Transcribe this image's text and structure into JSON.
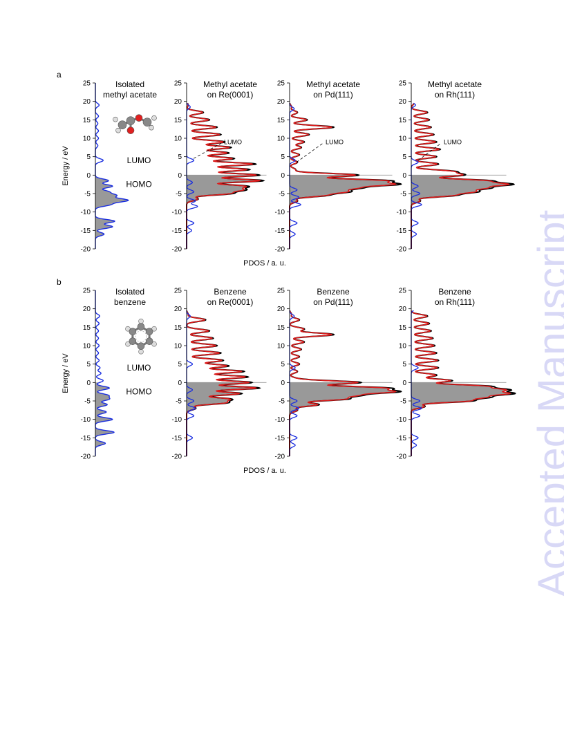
{
  "watermark": "Accepted Manuscript",
  "colors": {
    "isolated": "#1a2ee0",
    "adsorbed_black": "#000000",
    "adsorbed_red": "#dd1a1a",
    "occupied_fill": "#999999",
    "watermark": "#d8d8f6"
  },
  "chart_data": [
    {
      "panel": "a",
      "type": "area",
      "x_axis_label": "PDOS / a. u.",
      "y_axis_label": "Energy / eV",
      "ylim": [
        -20,
        25
      ],
      "yticks": [
        25,
        20,
        15,
        10,
        5,
        0,
        -5,
        -10,
        -15,
        -20
      ],
      "occupied_region": "energy below 0 eV shaded grey",
      "subplots": [
        {
          "title": [
            "Isolated",
            "methyl acetate"
          ],
          "kind": "isolated",
          "annotations": [
            "LUMO",
            "HOMO"
          ],
          "lumo_ev": 4,
          "homo_ev": -1,
          "peaks": [
            [
              19,
              0.12
            ],
            [
              16,
              0.1
            ],
            [
              14,
              0.08
            ],
            [
              12,
              0.1
            ],
            [
              10,
              0.1
            ],
            [
              8,
              0.08
            ],
            [
              4,
              0.25
            ],
            [
              -1.5,
              0.42
            ],
            [
              -3,
              0.55
            ],
            [
              -4.5,
              0.4
            ],
            [
              -5.5,
              0.62
            ],
            [
              -6.5,
              0.48
            ],
            [
              -7,
              0.72
            ],
            [
              -8,
              0.45
            ],
            [
              -12.5,
              0.62
            ],
            [
              -14,
              0.55
            ],
            [
              -16,
              0.28
            ]
          ]
        },
        {
          "title": [
            "Methyl acetate",
            "on Re(0001)"
          ],
          "kind": "adsorbed",
          "annotations": [
            "LUMO"
          ],
          "lumo_ev": 4,
          "peaks": [
            [
              19,
              0.02
            ],
            [
              17,
              0.22
            ],
            [
              15,
              0.3
            ],
            [
              13,
              0.4
            ],
            [
              11,
              0.45
            ],
            [
              9,
              0.5
            ],
            [
              7.5,
              0.58
            ],
            [
              6,
              0.55
            ],
            [
              4.5,
              0.62
            ],
            [
              3,
              0.9
            ],
            [
              1.5,
              0.82
            ],
            [
              0,
              0.95
            ],
            [
              -1.5,
              1.0
            ],
            [
              -3,
              0.75
            ],
            [
              -4,
              0.68
            ],
            [
              -5,
              0.55
            ],
            [
              -6.5,
              0.15
            ]
          ],
          "molecule_peaks": [
            [
              18.5,
              0.05
            ],
            [
              4,
              0.1
            ],
            [
              -2,
              0.08
            ],
            [
              -4.5,
              0.1
            ],
            [
              -7,
              0.12
            ],
            [
              -8.5,
              0.15
            ],
            [
              -13,
              0.1
            ],
            [
              -15,
              0.07
            ]
          ]
        },
        {
          "title": [
            "Methyl acetate",
            "on Pd(111)"
          ],
          "kind": "adsorbed",
          "annotations": [
            "LUMO"
          ],
          "lumo_ev": 3,
          "peaks": [
            [
              18.5,
              0.02
            ],
            [
              17,
              0.08
            ],
            [
              15,
              0.18
            ],
            [
              13,
              0.45
            ],
            [
              11,
              0.2
            ],
            [
              9,
              0.15
            ],
            [
              7.5,
              0.12
            ],
            [
              5.5,
              0.1
            ],
            [
              3.5,
              0.08
            ],
            [
              1.5,
              0.06
            ],
            [
              0,
              0.7
            ],
            [
              -1.5,
              0.95
            ],
            [
              -2.5,
              1.0
            ],
            [
              -3.5,
              0.62
            ],
            [
              -4.5,
              0.55
            ],
            [
              -5.5,
              0.35
            ],
            [
              -7,
              0.08
            ]
          ],
          "molecule_peaks": [
            [
              18,
              0.05
            ],
            [
              4,
              0.06
            ],
            [
              -4,
              0.08
            ],
            [
              -6,
              0.1
            ],
            [
              -8,
              0.12
            ],
            [
              -13,
              0.08
            ],
            [
              -16,
              0.06
            ]
          ]
        },
        {
          "title": [
            "Methyl acetate",
            "on Rh(111)"
          ],
          "kind": "adsorbed",
          "annotations": [
            "LUMO"
          ],
          "lumo_ev": 3.5,
          "peaks": [
            [
              19.5,
              0.03
            ],
            [
              17,
              0.18
            ],
            [
              15,
              0.2
            ],
            [
              13,
              0.22
            ],
            [
              11,
              0.25
            ],
            [
              9,
              0.28
            ],
            [
              7,
              0.32
            ],
            [
              5,
              0.28
            ],
            [
              3,
              0.3
            ],
            [
              1,
              0.45
            ],
            [
              0,
              0.55
            ],
            [
              -1.5,
              0.8
            ],
            [
              -2.5,
              1.0
            ],
            [
              -3.5,
              0.75
            ],
            [
              -4.5,
              0.65
            ],
            [
              -5.5,
              0.45
            ],
            [
              -7,
              0.1
            ]
          ],
          "molecule_peaks": [
            [
              19,
              0.05
            ],
            [
              3.5,
              0.08
            ],
            [
              -3,
              0.08
            ],
            [
              -5,
              0.1
            ],
            [
              -8,
              0.12
            ],
            [
              -13,
              0.08
            ],
            [
              -16,
              0.06
            ]
          ]
        }
      ]
    },
    {
      "panel": "b",
      "type": "area",
      "x_axis_label": "PDOS / a. u.",
      "y_axis_label": "Energy / eV",
      "ylim": [
        -20,
        25
      ],
      "yticks": [
        25,
        20,
        15,
        10,
        5,
        0,
        -5,
        -10,
        -15,
        -20
      ],
      "occupied_region": "energy below 0 eV shaded grey",
      "subplots": [
        {
          "title": [
            "Isolated",
            "benzene"
          ],
          "kind": "isolated",
          "annotations": [
            "LUMO",
            "HOMO"
          ],
          "lumo_ev": 4,
          "homo_ev": -1,
          "peaks": [
            [
              18,
              0.14
            ],
            [
              16,
              0.12
            ],
            [
              14,
              0.1
            ],
            [
              12,
              0.1
            ],
            [
              10,
              0.12
            ],
            [
              8,
              0.1
            ],
            [
              6,
              0.12
            ],
            [
              4,
              0.15
            ],
            [
              2.5,
              0.18
            ],
            [
              0.5,
              0.25
            ],
            [
              -1.5,
              0.45
            ],
            [
              -3.5,
              0.4
            ],
            [
              -4.5,
              0.42
            ],
            [
              -6,
              0.38
            ],
            [
              -8,
              0.35
            ],
            [
              -10,
              0.55
            ],
            [
              -13.5,
              0.6
            ],
            [
              -16.5,
              0.32
            ]
          ]
        },
        {
          "title": [
            "Benzene",
            "on Re(0001)"
          ],
          "kind": "adsorbed",
          "annotations": [],
          "peaks": [
            [
              18.5,
              0.02
            ],
            [
              17,
              0.25
            ],
            [
              14,
              0.3
            ],
            [
              12,
              0.35
            ],
            [
              10,
              0.4
            ],
            [
              8,
              0.45
            ],
            [
              6,
              0.48
            ],
            [
              4.5,
              0.55
            ],
            [
              3,
              0.75
            ],
            [
              1.5,
              0.8
            ],
            [
              0,
              0.85
            ],
            [
              -1.5,
              0.95
            ],
            [
              -3,
              0.72
            ],
            [
              -4.5,
              0.55
            ],
            [
              -5.5,
              0.5
            ],
            [
              -7,
              0.12
            ]
          ],
          "molecule_peaks": [
            [
              18,
              0.05
            ],
            [
              5,
              0.08
            ],
            [
              -2,
              0.08
            ],
            [
              -5,
              0.1
            ],
            [
              -7,
              0.12
            ],
            [
              -9,
              0.1
            ],
            [
              -15,
              0.08
            ]
          ]
        },
        {
          "title": [
            "Benzene",
            "on Pd(111)"
          ],
          "kind": "adsorbed",
          "annotations": [],
          "peaks": [
            [
              18.5,
              0.02
            ],
            [
              17,
              0.1
            ],
            [
              14.5,
              0.15
            ],
            [
              13,
              0.45
            ],
            [
              11,
              0.15
            ],
            [
              9,
              0.12
            ],
            [
              7,
              0.1
            ],
            [
              5,
              0.1
            ],
            [
              3,
              0.08
            ],
            [
              1,
              0.06
            ],
            [
              0,
              0.72
            ],
            [
              -1.5,
              0.95
            ],
            [
              -2.5,
              1.0
            ],
            [
              -3.5,
              0.62
            ],
            [
              -4.5,
              0.55
            ],
            [
              -6,
              0.3
            ],
            [
              -7.5,
              0.08
            ]
          ],
          "molecule_peaks": [
            [
              18,
              0.05
            ],
            [
              4,
              0.06
            ],
            [
              -5,
              0.08
            ],
            [
              -7,
              0.1
            ],
            [
              -9,
              0.08
            ],
            [
              -15,
              0.08
            ],
            [
              -17,
              0.06
            ]
          ]
        },
        {
          "title": [
            "Benzene",
            "on Rh(111)"
          ],
          "kind": "adsorbed",
          "annotations": [],
          "peaks": [
            [
              20.5,
              0.03
            ],
            [
              18,
              0.18
            ],
            [
              16,
              0.2
            ],
            [
              14,
              0.22
            ],
            [
              12,
              0.24
            ],
            [
              10,
              0.26
            ],
            [
              8,
              0.28
            ],
            [
              6,
              0.3
            ],
            [
              4,
              0.3
            ],
            [
              2,
              0.28
            ],
            [
              0.5,
              0.45
            ],
            [
              -1,
              0.8
            ],
            [
              -2,
              0.95
            ],
            [
              -3,
              1.0
            ],
            [
              -4,
              0.75
            ],
            [
              -5,
              0.62
            ],
            [
              -6.5,
              0.15
            ]
          ],
          "molecule_peaks": [
            [
              20,
              0.05
            ],
            [
              4,
              0.08
            ],
            [
              -5,
              0.1
            ],
            [
              -7,
              0.12
            ],
            [
              -9,
              0.1
            ],
            [
              -15,
              0.08
            ],
            [
              -17,
              0.06
            ]
          ]
        }
      ]
    }
  ]
}
